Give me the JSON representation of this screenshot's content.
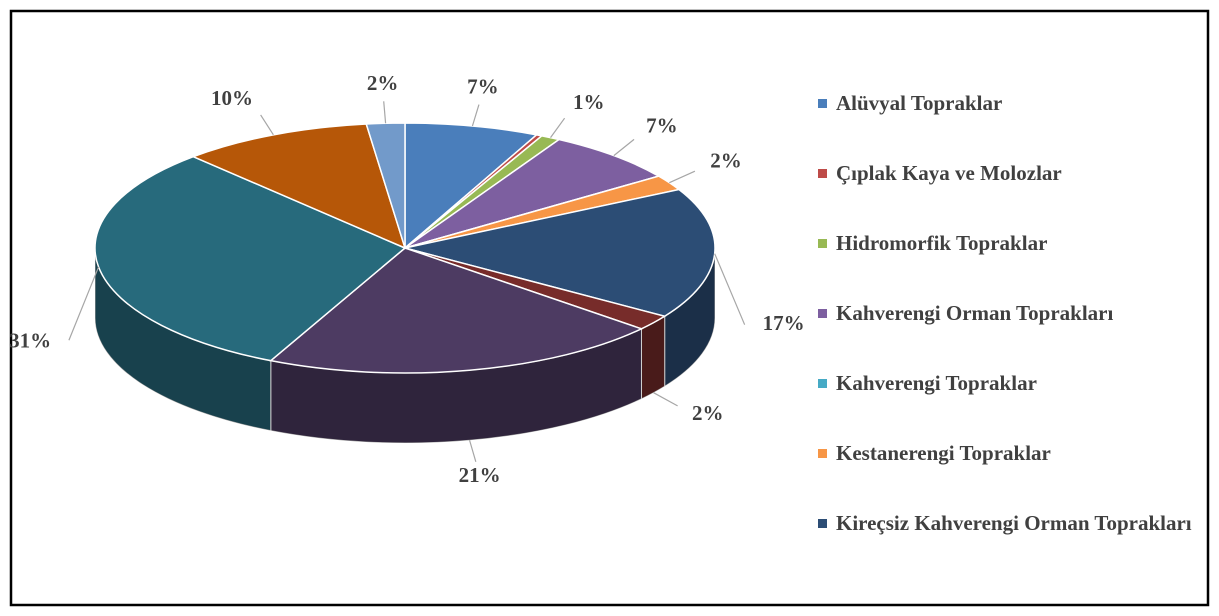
{
  "chart_data": {
    "type": "pie3d",
    "categories": [
      "Alüvyal Topraklar",
      "Çıplak Kaya ve Molozlar",
      "Hidromorfik Topraklar",
      "Kahverengi Orman Toprakları",
      "Kahverengi Topraklar",
      "Kestanerengi Topraklar",
      "Kireçsiz Kahverengi Orman Toprakları",
      null,
      null,
      null,
      null,
      null
    ],
    "values": [
      7,
      0.3,
      1,
      7,
      0,
      2,
      17,
      2,
      21,
      31,
      10,
      2
    ],
    "value_labels": [
      "7%",
      null,
      "1%",
      "7%",
      null,
      "2%",
      "17%",
      "2%",
      "21%",
      "31%",
      "10%",
      "2%"
    ],
    "colors": [
      "#4a7ebb",
      "#be4b48",
      "#98b954",
      "#7d5fa0",
      "#46aac5",
      "#f79646",
      "#2c4d75",
      "#772c2a",
      "#4d3b62",
      "#276a7c",
      "#b65708",
      "#729aca"
    ],
    "legend": "right"
  }
}
